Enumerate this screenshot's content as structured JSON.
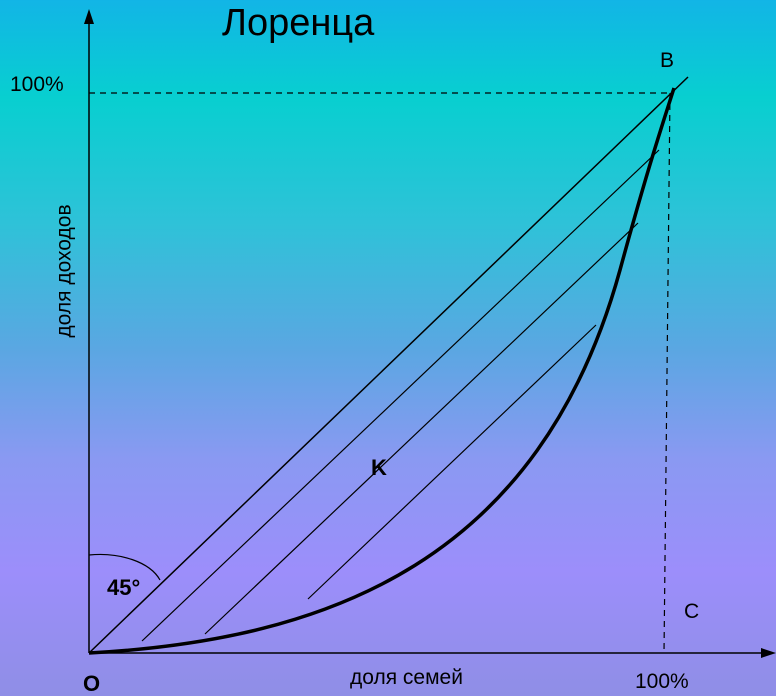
{
  "title": "Лоренца",
  "axes": {
    "x_label": "доля семей",
    "y_label": "доля доходов",
    "x_max_label": "100%",
    "y_max_label": "100%"
  },
  "points": {
    "origin": "O",
    "b": "B",
    "c": "C",
    "k": "K"
  },
  "angle_label": "45°",
  "colors": {
    "background_top": "#12b5e6",
    "background_bottom": "#9c8efb",
    "line": "#000000"
  }
}
